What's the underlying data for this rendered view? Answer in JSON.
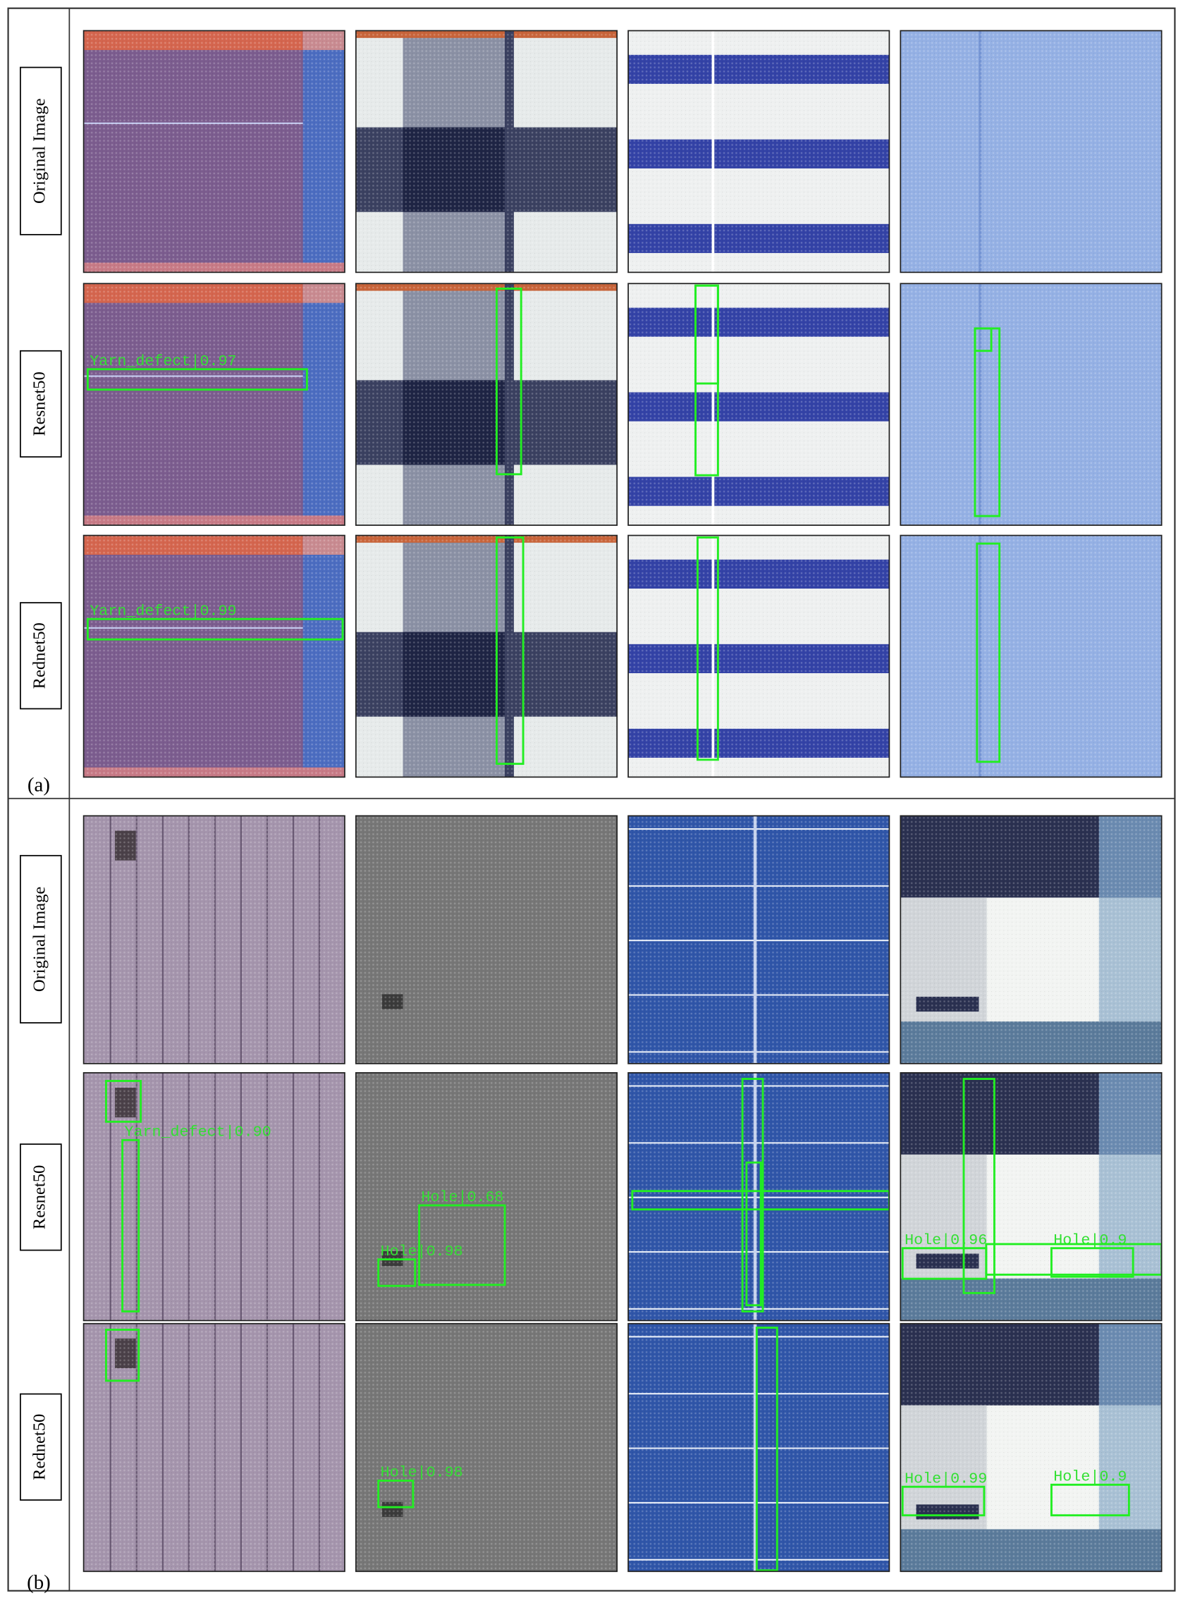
{
  "panels": [
    {
      "label": "(a)",
      "rows": [
        {
          "label": "Original Image"
        },
        {
          "label": "Resnet50",
          "detections": [
            "Yarn_defect|0.97"
          ]
        },
        {
          "label": "Rednet50",
          "detections": [
            "Yarn_defect|0.99"
          ]
        }
      ]
    },
    {
      "label": "(b)",
      "rows": [
        {
          "label": "Original Image"
        },
        {
          "label": "Resnet50",
          "detections": [
            "Yarn_defect|0.90",
            "Hole|0.68",
            "Hole|0.98",
            "Hole|0.96",
            "Hole|0.9"
          ]
        },
        {
          "label": "Rednet50",
          "detections": [
            "Hole|0.98",
            "Hole|0.99",
            "Hole|0.9"
          ]
        }
      ]
    }
  ]
}
